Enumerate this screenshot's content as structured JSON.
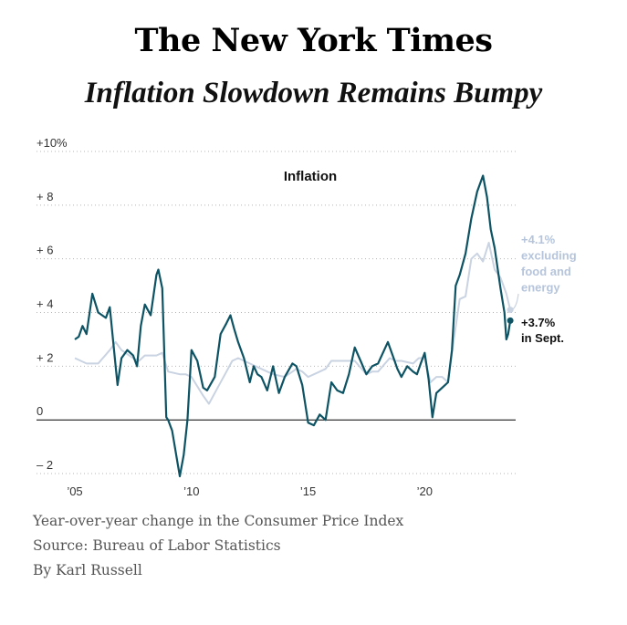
{
  "masthead": "The New York Times",
  "headline": "Inflation Slowdown Remains Bumpy",
  "footer": {
    "description": "Year-over-year change in the Consumer Price Index",
    "source": "Source: Bureau of Labor Statistics",
    "byline": "By Karl Russell"
  },
  "chart_data": {
    "type": "line",
    "title": "Inflation",
    "xlabel": "",
    "ylabel": "",
    "xlim": [
      2005.0,
      2023.75
    ],
    "ylim": [
      -2.1,
      10.0
    ],
    "grid": true,
    "y_ticks": [
      {
        "value": 10,
        "label": "+10%"
      },
      {
        "value": 8,
        "label": "+ 8"
      },
      {
        "value": 6,
        "label": "+ 6"
      },
      {
        "value": 4,
        "label": "+ 4"
      },
      {
        "value": 2,
        "label": "+ 2"
      },
      {
        "value": 0,
        "label": "0"
      },
      {
        "value": -2,
        "label": "– 2"
      }
    ],
    "x_ticks": [
      {
        "value": 2005,
        "label": "’05"
      },
      {
        "value": 2010,
        "label": "’10"
      },
      {
        "value": 2015,
        "label": "’15"
      },
      {
        "value": 2020,
        "label": "’20"
      }
    ],
    "series": [
      {
        "key": "headline",
        "color": "#0d5364",
        "points": [
          [
            2005.0,
            3.0
          ],
          [
            2005.17,
            3.1
          ],
          [
            2005.33,
            3.5
          ],
          [
            2005.5,
            3.2
          ],
          [
            2005.75,
            4.7
          ],
          [
            2006.0,
            4.0
          ],
          [
            2006.33,
            3.8
          ],
          [
            2006.5,
            4.2
          ],
          [
            2006.75,
            2.0
          ],
          [
            2006.83,
            1.3
          ],
          [
            2007.0,
            2.3
          ],
          [
            2007.25,
            2.6
          ],
          [
            2007.5,
            2.4
          ],
          [
            2007.67,
            2.0
          ],
          [
            2007.83,
            3.5
          ],
          [
            2008.0,
            4.3
          ],
          [
            2008.25,
            3.9
          ],
          [
            2008.5,
            5.4
          ],
          [
            2008.58,
            5.6
          ],
          [
            2008.75,
            4.9
          ],
          [
            2008.92,
            0.1
          ],
          [
            2009.0,
            0.0
          ],
          [
            2009.17,
            -0.4
          ],
          [
            2009.5,
            -2.1
          ],
          [
            2009.67,
            -1.3
          ],
          [
            2009.83,
            0.0
          ],
          [
            2010.0,
            2.6
          ],
          [
            2010.25,
            2.2
          ],
          [
            2010.5,
            1.2
          ],
          [
            2010.67,
            1.1
          ],
          [
            2011.0,
            1.6
          ],
          [
            2011.25,
            3.2
          ],
          [
            2011.5,
            3.6
          ],
          [
            2011.67,
            3.9
          ],
          [
            2011.83,
            3.4
          ],
          [
            2012.0,
            2.9
          ],
          [
            2012.25,
            2.3
          ],
          [
            2012.5,
            1.4
          ],
          [
            2012.67,
            2.0
          ],
          [
            2012.83,
            1.7
          ],
          [
            2013.0,
            1.6
          ],
          [
            2013.25,
            1.1
          ],
          [
            2013.5,
            2.0
          ],
          [
            2013.75,
            1.0
          ],
          [
            2014.0,
            1.6
          ],
          [
            2014.33,
            2.1
          ],
          [
            2014.5,
            2.0
          ],
          [
            2014.75,
            1.3
          ],
          [
            2015.0,
            -0.1
          ],
          [
            2015.25,
            -0.2
          ],
          [
            2015.5,
            0.2
          ],
          [
            2015.75,
            0.0
          ],
          [
            2016.0,
            1.4
          ],
          [
            2016.25,
            1.1
          ],
          [
            2016.5,
            1.0
          ],
          [
            2016.75,
            1.7
          ],
          [
            2017.0,
            2.7
          ],
          [
            2017.25,
            2.2
          ],
          [
            2017.5,
            1.7
          ],
          [
            2017.75,
            2.0
          ],
          [
            2018.0,
            2.1
          ],
          [
            2018.42,
            2.9
          ],
          [
            2018.67,
            2.3
          ],
          [
            2018.83,
            1.9
          ],
          [
            2019.0,
            1.6
          ],
          [
            2019.25,
            2.0
          ],
          [
            2019.5,
            1.8
          ],
          [
            2019.67,
            1.7
          ],
          [
            2019.83,
            2.1
          ],
          [
            2020.0,
            2.5
          ],
          [
            2020.17,
            1.5
          ],
          [
            2020.33,
            0.1
          ],
          [
            2020.5,
            1.0
          ],
          [
            2020.75,
            1.2
          ],
          [
            2021.0,
            1.4
          ],
          [
            2021.17,
            2.6
          ],
          [
            2021.33,
            5.0
          ],
          [
            2021.5,
            5.4
          ],
          [
            2021.75,
            6.2
          ],
          [
            2022.0,
            7.5
          ],
          [
            2022.25,
            8.5
          ],
          [
            2022.5,
            9.1
          ],
          [
            2022.67,
            8.3
          ],
          [
            2022.83,
            7.1
          ],
          [
            2023.0,
            6.4
          ],
          [
            2023.25,
            4.9
          ],
          [
            2023.42,
            4.0
          ],
          [
            2023.5,
            3.0
          ],
          [
            2023.58,
            3.2
          ],
          [
            2023.67,
            3.7
          ]
        ],
        "end_label": [
          "+3.7%",
          "in Sept."
        ]
      },
      {
        "key": "core",
        "color": "#c9d3e2",
        "points": [
          [
            2005.0,
            2.3
          ],
          [
            2005.5,
            2.1
          ],
          [
            2006.0,
            2.1
          ],
          [
            2006.5,
            2.6
          ],
          [
            2006.75,
            2.9
          ],
          [
            2007.0,
            2.6
          ],
          [
            2007.5,
            2.3
          ],
          [
            2007.75,
            2.2
          ],
          [
            2008.0,
            2.4
          ],
          [
            2008.5,
            2.4
          ],
          [
            2008.75,
            2.5
          ],
          [
            2009.0,
            1.8
          ],
          [
            2009.5,
            1.7
          ],
          [
            2009.75,
            1.7
          ],
          [
            2010.0,
            1.6
          ],
          [
            2010.5,
            0.9
          ],
          [
            2010.75,
            0.6
          ],
          [
            2011.0,
            1.0
          ],
          [
            2011.5,
            1.8
          ],
          [
            2011.75,
            2.2
          ],
          [
            2012.0,
            2.3
          ],
          [
            2012.5,
            2.1
          ],
          [
            2012.75,
            2.0
          ],
          [
            2013.0,
            1.9
          ],
          [
            2013.5,
            1.7
          ],
          [
            2014.0,
            1.6
          ],
          [
            2014.5,
            1.9
          ],
          [
            2014.75,
            1.8
          ],
          [
            2015.0,
            1.6
          ],
          [
            2015.5,
            1.8
          ],
          [
            2015.75,
            1.9
          ],
          [
            2016.0,
            2.2
          ],
          [
            2016.5,
            2.2
          ],
          [
            2016.75,
            2.2
          ],
          [
            2017.0,
            2.2
          ],
          [
            2017.5,
            1.7
          ],
          [
            2017.75,
            1.8
          ],
          [
            2018.0,
            1.8
          ],
          [
            2018.5,
            2.3
          ],
          [
            2018.75,
            2.2
          ],
          [
            2019.0,
            2.2
          ],
          [
            2019.5,
            2.1
          ],
          [
            2019.75,
            2.3
          ],
          [
            2020.0,
            2.3
          ],
          [
            2020.25,
            1.4
          ],
          [
            2020.5,
            1.6
          ],
          [
            2020.75,
            1.6
          ],
          [
            2021.0,
            1.4
          ],
          [
            2021.25,
            3.0
          ],
          [
            2021.5,
            4.5
          ],
          [
            2021.75,
            4.6
          ],
          [
            2022.0,
            6.0
          ],
          [
            2022.25,
            6.2
          ],
          [
            2022.5,
            5.9
          ],
          [
            2022.75,
            6.6
          ],
          [
            2023.0,
            5.6
          ],
          [
            2023.25,
            5.3
          ],
          [
            2023.5,
            4.7
          ],
          [
            2023.67,
            4.1
          ]
        ],
        "end_label": [
          "+4.1%",
          "excluding",
          "food and",
          "energy"
        ]
      }
    ]
  }
}
